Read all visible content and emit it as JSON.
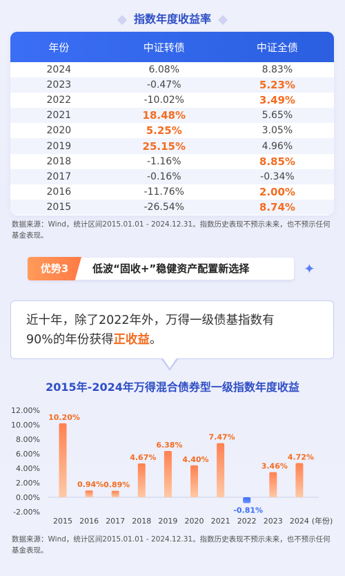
{
  "table_title": "指数年度收益率",
  "table": {
    "headers": [
      "年份",
      "中证转债",
      "中证全债"
    ],
    "rows": [
      {
        "year": "2024",
        "a": "6.08%",
        "b": "8.83%",
        "hl_a": false,
        "hl_b": false
      },
      {
        "year": "2023",
        "a": "-0.47%",
        "b": "5.23%",
        "hl_a": false,
        "hl_b": true
      },
      {
        "year": "2022",
        "a": "-10.02%",
        "b": "3.49%",
        "hl_a": false,
        "hl_b": true
      },
      {
        "year": "2021",
        "a": "18.48%",
        "b": "5.65%",
        "hl_a": true,
        "hl_b": false
      },
      {
        "year": "2020",
        "a": "5.25%",
        "b": "3.05%",
        "hl_a": true,
        "hl_b": false
      },
      {
        "year": "2019",
        "a": "25.15%",
        "b": "4.96%",
        "hl_a": true,
        "hl_b": false
      },
      {
        "year": "2018",
        "a": "-1.16%",
        "b": "8.85%",
        "hl_a": false,
        "hl_b": true
      },
      {
        "year": "2017",
        "a": "-0.16%",
        "b": "-0.34%",
        "hl_a": false,
        "hl_b": false
      },
      {
        "year": "2016",
        "a": "-11.76%",
        "b": "2.00%",
        "hl_a": false,
        "hl_b": true
      },
      {
        "year": "2015",
        "a": "-26.54%",
        "b": "8.74%",
        "hl_a": false,
        "hl_b": true
      }
    ]
  },
  "note": "数据来源：Wind，统计区间2015.01.01 - 2024.12.31。指数历史表现不预示未来，也不预示任何基金表现。",
  "advantage": {
    "tag": "优势3",
    "text": "低波“固收+”稳健资产配置新选择"
  },
  "quote": {
    "line1": "近十年，除了2022年外，万得一级债基指数有",
    "line2_prefix": "90%的年份获得",
    "highlight": "正收益",
    "suffix": "。"
  },
  "colors": {
    "accent": "#f36c20",
    "primary": "#2f4fc4",
    "header_blue": "#3b6ef5",
    "bar_orange": "#ff8f5e",
    "bar_blue": "#3b6ef5"
  },
  "chart_data": {
    "type": "bar",
    "title": "2015年-2024年万得混合债券型一级指数年度收益",
    "categories": [
      "2015",
      "2016",
      "2017",
      "2018",
      "2019",
      "2020",
      "2021",
      "2022",
      "2023",
      "2024"
    ],
    "x_unit_label": "(年份)",
    "values": [
      10.2,
      0.94,
      0.89,
      4.67,
      6.38,
      4.4,
      7.47,
      -0.81,
      3.46,
      4.72
    ],
    "value_labels": [
      "10.20%",
      "0.94%",
      "0.89%",
      "4.67%",
      "6.38%",
      "4.40%",
      "7.47%",
      "-0.81%",
      "3.46%",
      "4.72%"
    ],
    "ylim": [
      -2,
      12
    ],
    "yticks": [
      "12.00%",
      "10.00%",
      "8.00%",
      "6.00%",
      "4.00%",
      "2.00%",
      "0.00%",
      "-2.00%"
    ],
    "grid": false
  }
}
